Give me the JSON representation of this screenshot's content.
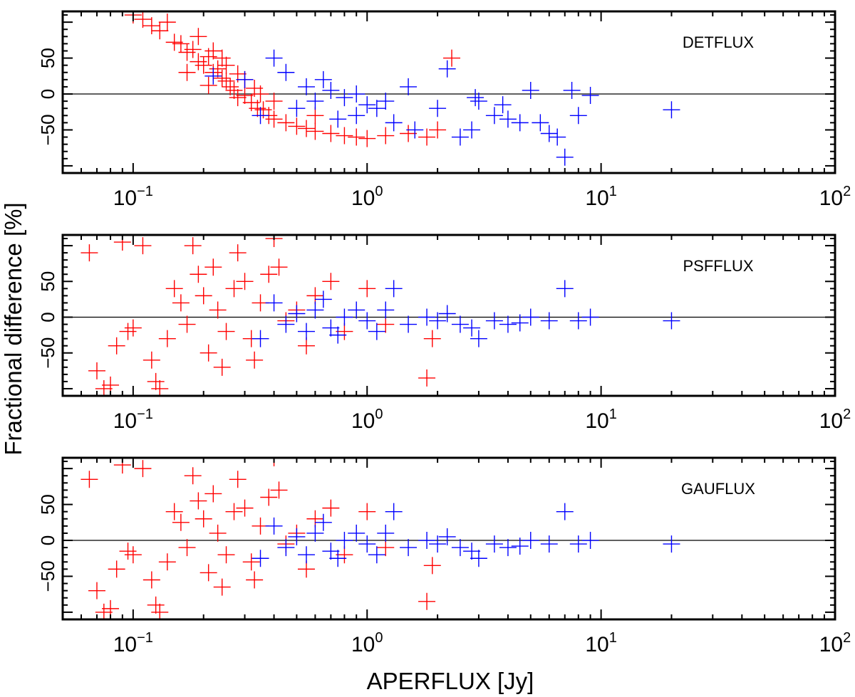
{
  "figure": {
    "ylabel": "Fractional difference [%]",
    "xlabel": "APERFLUX [Jy]",
    "colors": {
      "faint": "#ff0000",
      "bright": "#0000ff",
      "axes": "#000000"
    }
  },
  "chart_data": [
    {
      "type": "scatter",
      "title": "DETFLUX",
      "xscale": "log",
      "xlim": [
        0.05,
        100
      ],
      "ylim": [
        -110,
        115
      ],
      "xticks": [
        {
          "value": 0.1,
          "base": "10",
          "exp": "−1"
        },
        {
          "value": 1,
          "base": "10",
          "exp": "0"
        },
        {
          "value": 10,
          "base": "10",
          "exp": "1"
        },
        {
          "value": 100,
          "base": "10",
          "exp": "2"
        }
      ],
      "yticks": [
        {
          "value": -50,
          "label": "−50"
        },
        {
          "value": 0,
          "label": "0"
        },
        {
          "value": 50,
          "label": "50"
        }
      ],
      "zero_line": 0,
      "series": [
        {
          "name": "faint",
          "color": "#ff0000",
          "points": [
            [
              0.1,
              110
            ],
            [
              0.11,
              104
            ],
            [
              0.12,
              95
            ],
            [
              0.13,
              88
            ],
            [
              0.14,
              100
            ],
            [
              0.15,
              72
            ],
            [
              0.16,
              70
            ],
            [
              0.17,
              58
            ],
            [
              0.18,
              62
            ],
            [
              0.19,
              45
            ],
            [
              0.2,
              40
            ],
            [
              0.21,
              52
            ],
            [
              0.22,
              30
            ],
            [
              0.23,
              35
            ],
            [
              0.24,
              22
            ],
            [
              0.25,
              18
            ],
            [
              0.26,
              10
            ],
            [
              0.27,
              5
            ],
            [
              0.28,
              -5
            ],
            [
              0.3,
              -2
            ],
            [
              0.32,
              -12
            ],
            [
              0.34,
              -20
            ],
            [
              0.36,
              -22
            ],
            [
              0.38,
              -30
            ],
            [
              0.4,
              -35
            ],
            [
              0.45,
              -40
            ],
            [
              0.5,
              -45
            ],
            [
              0.55,
              -48
            ],
            [
              0.6,
              -52
            ],
            [
              0.7,
              -55
            ],
            [
              0.8,
              -58
            ],
            [
              0.9,
              -60
            ],
            [
              1.0,
              -62
            ],
            [
              1.2,
              -58
            ],
            [
              1.5,
              -55
            ],
            [
              1.8,
              -60
            ],
            [
              2.0,
              -50
            ],
            [
              2.3,
              50
            ],
            [
              0.17,
              30
            ],
            [
              0.22,
              60
            ],
            [
              0.25,
              40
            ],
            [
              0.3,
              20
            ],
            [
              0.35,
              0
            ],
            [
              0.28,
              28
            ],
            [
              0.4,
              -10
            ],
            [
              0.6,
              -30
            ],
            [
              0.24,
              50
            ],
            [
              0.19,
              80
            ],
            [
              0.21,
              12
            ],
            [
              0.33,
              8
            ]
          ]
        },
        {
          "name": "bright",
          "color": "#0000ff",
          "points": [
            [
              0.22,
              25
            ],
            [
              0.3,
              20
            ],
            [
              0.35,
              -30
            ],
            [
              0.4,
              50
            ],
            [
              0.45,
              30
            ],
            [
              0.5,
              -20
            ],
            [
              0.55,
              10
            ],
            [
              0.6,
              -10
            ],
            [
              0.7,
              5
            ],
            [
              0.8,
              -5
            ],
            [
              0.9,
              0
            ],
            [
              1.0,
              -15
            ],
            [
              1.1,
              -20
            ],
            [
              1.2,
              -10
            ],
            [
              1.3,
              -40
            ],
            [
              1.5,
              10
            ],
            [
              2.0,
              -20
            ],
            [
              2.2,
              35
            ],
            [
              2.5,
              -60
            ],
            [
              2.8,
              -50
            ],
            [
              3.0,
              -10
            ],
            [
              3.5,
              -30
            ],
            [
              4.0,
              -35
            ],
            [
              4.5,
              -40
            ],
            [
              5.0,
              5
            ],
            [
              6.0,
              -55
            ],
            [
              6.5,
              -60
            ],
            [
              7.0,
              -88
            ],
            [
              7.5,
              5
            ],
            [
              8.0,
              -30
            ],
            [
              9.0,
              -2
            ],
            [
              20.0,
              -22
            ],
            [
              0.9,
              -30
            ],
            [
              1.6,
              -50
            ],
            [
              0.65,
              20
            ],
            [
              0.75,
              -35
            ],
            [
              2.9,
              -5
            ],
            [
              3.8,
              -15
            ],
            [
              5.5,
              -40
            ]
          ]
        }
      ]
    },
    {
      "type": "scatter",
      "title": "PSFFLUX",
      "xscale": "log",
      "xlim": [
        0.05,
        100
      ],
      "ylim": [
        -110,
        115
      ],
      "xticks": [
        {
          "value": 0.1,
          "base": "10",
          "exp": "−1"
        },
        {
          "value": 1,
          "base": "10",
          "exp": "0"
        },
        {
          "value": 10,
          "base": "10",
          "exp": "1"
        },
        {
          "value": 100,
          "base": "10",
          "exp": "2"
        }
      ],
      "yticks": [
        {
          "value": -50,
          "label": "−50"
        },
        {
          "value": 0,
          "label": "0"
        },
        {
          "value": 50,
          "label": "50"
        }
      ],
      "zero_line": 0,
      "series": [
        {
          "name": "faint",
          "color": "#ff0000",
          "points": [
            [
              0.065,
              90
            ],
            [
              0.07,
              -75
            ],
            [
              0.075,
              -100
            ],
            [
              0.08,
              -95
            ],
            [
              0.09,
              105
            ],
            [
              0.095,
              -20
            ],
            [
              0.1,
              -15
            ],
            [
              0.11,
              100
            ],
            [
              0.12,
              -60
            ],
            [
              0.125,
              -90
            ],
            [
              0.13,
              -100
            ],
            [
              0.14,
              -30
            ],
            [
              0.15,
              40
            ],
            [
              0.16,
              20
            ],
            [
              0.17,
              -10
            ],
            [
              0.18,
              100
            ],
            [
              0.19,
              60
            ],
            [
              0.2,
              30
            ],
            [
              0.21,
              -50
            ],
            [
              0.22,
              70
            ],
            [
              0.23,
              10
            ],
            [
              0.25,
              -20
            ],
            [
              0.27,
              40
            ],
            [
              0.3,
              50
            ],
            [
              0.32,
              -30
            ],
            [
              0.35,
              20
            ],
            [
              0.38,
              60
            ],
            [
              0.4,
              110
            ],
            [
              0.45,
              -5
            ],
            [
              0.5,
              10
            ],
            [
              0.55,
              -40
            ],
            [
              0.6,
              30
            ],
            [
              0.7,
              50
            ],
            [
              0.8,
              -20
            ],
            [
              1.0,
              40
            ],
            [
              1.2,
              -10
            ],
            [
              1.8,
              -85
            ],
            [
              1.9,
              -30
            ],
            [
              0.085,
              -40
            ],
            [
              0.24,
              -70
            ],
            [
              0.28,
              90
            ],
            [
              0.33,
              -60
            ],
            [
              0.42,
              70
            ]
          ]
        },
        {
          "name": "bright",
          "color": "#0000ff",
          "points": [
            [
              0.35,
              -30
            ],
            [
              0.4,
              20
            ],
            [
              0.45,
              -10
            ],
            [
              0.5,
              5
            ],
            [
              0.55,
              -20
            ],
            [
              0.6,
              10
            ],
            [
              0.65,
              25
            ],
            [
              0.7,
              -15
            ],
            [
              0.8,
              0
            ],
            [
              0.9,
              10
            ],
            [
              1.0,
              -5
            ],
            [
              1.1,
              -20
            ],
            [
              1.2,
              10
            ],
            [
              1.3,
              40
            ],
            [
              1.5,
              -10
            ],
            [
              1.8,
              0
            ],
            [
              2.0,
              -5
            ],
            [
              2.5,
              -10
            ],
            [
              3.0,
              -30
            ],
            [
              3.5,
              -5
            ],
            [
              4.0,
              -10
            ],
            [
              5.0,
              0
            ],
            [
              6.0,
              -5
            ],
            [
              7.0,
              40
            ],
            [
              8.0,
              -5
            ],
            [
              9.0,
              0
            ],
            [
              20.0,
              -5
            ],
            [
              2.2,
              5
            ],
            [
              2.8,
              -15
            ],
            [
              4.5,
              -8
            ],
            [
              0.75,
              -25
            ]
          ]
        }
      ]
    },
    {
      "type": "scatter",
      "title": "GAUFLUX",
      "xscale": "log",
      "xlim": [
        0.05,
        100
      ],
      "ylim": [
        -110,
        115
      ],
      "xticks": [
        {
          "value": 0.1,
          "base": "10",
          "exp": "−1"
        },
        {
          "value": 1,
          "base": "10",
          "exp": "0"
        },
        {
          "value": 10,
          "base": "10",
          "exp": "1"
        },
        {
          "value": 100,
          "base": "10",
          "exp": "2"
        }
      ],
      "yticks": [
        {
          "value": -50,
          "label": "−50"
        },
        {
          "value": 0,
          "label": "0"
        },
        {
          "value": 50,
          "label": "50"
        }
      ],
      "zero_line": 0,
      "series": [
        {
          "name": "faint",
          "color": "#ff0000",
          "points": [
            [
              0.065,
              85
            ],
            [
              0.07,
              -70
            ],
            [
              0.075,
              -100
            ],
            [
              0.08,
              -95
            ],
            [
              0.09,
              105
            ],
            [
              0.095,
              -15
            ],
            [
              0.1,
              -20
            ],
            [
              0.11,
              100
            ],
            [
              0.12,
              -55
            ],
            [
              0.125,
              -90
            ],
            [
              0.13,
              -100
            ],
            [
              0.14,
              -30
            ],
            [
              0.15,
              40
            ],
            [
              0.16,
              25
            ],
            [
              0.17,
              -10
            ],
            [
              0.18,
              90
            ],
            [
              0.19,
              55
            ],
            [
              0.2,
              30
            ],
            [
              0.21,
              -45
            ],
            [
              0.22,
              65
            ],
            [
              0.23,
              10
            ],
            [
              0.25,
              -20
            ],
            [
              0.27,
              40
            ],
            [
              0.3,
              45
            ],
            [
              0.32,
              -30
            ],
            [
              0.35,
              20
            ],
            [
              0.38,
              60
            ],
            [
              0.4,
              115
            ],
            [
              0.45,
              -5
            ],
            [
              0.5,
              10
            ],
            [
              0.55,
              -40
            ],
            [
              0.6,
              30
            ],
            [
              0.7,
              45
            ],
            [
              0.8,
              -20
            ],
            [
              1.0,
              40
            ],
            [
              1.2,
              -10
            ],
            [
              1.8,
              -85
            ],
            [
              1.9,
              -35
            ],
            [
              0.085,
              -40
            ],
            [
              0.24,
              -65
            ],
            [
              0.28,
              85
            ],
            [
              0.33,
              -55
            ],
            [
              0.42,
              70
            ]
          ]
        },
        {
          "name": "bright",
          "color": "#0000ff",
          "points": [
            [
              0.35,
              -25
            ],
            [
              0.4,
              20
            ],
            [
              0.45,
              -10
            ],
            [
              0.5,
              5
            ],
            [
              0.55,
              -20
            ],
            [
              0.6,
              10
            ],
            [
              0.65,
              25
            ],
            [
              0.7,
              -15
            ],
            [
              0.8,
              0
            ],
            [
              0.9,
              10
            ],
            [
              1.0,
              -5
            ],
            [
              1.1,
              -20
            ],
            [
              1.2,
              10
            ],
            [
              1.3,
              40
            ],
            [
              1.5,
              -10
            ],
            [
              1.8,
              0
            ],
            [
              2.0,
              -5
            ],
            [
              2.5,
              -10
            ],
            [
              3.0,
              -25
            ],
            [
              3.5,
              -5
            ],
            [
              4.0,
              -10
            ],
            [
              5.0,
              0
            ],
            [
              6.0,
              -5
            ],
            [
              7.0,
              40
            ],
            [
              8.0,
              -5
            ],
            [
              9.0,
              0
            ],
            [
              20.0,
              -5
            ],
            [
              2.2,
              5
            ],
            [
              2.8,
              -15
            ],
            [
              4.5,
              -8
            ],
            [
              0.75,
              -25
            ]
          ]
        }
      ]
    }
  ]
}
